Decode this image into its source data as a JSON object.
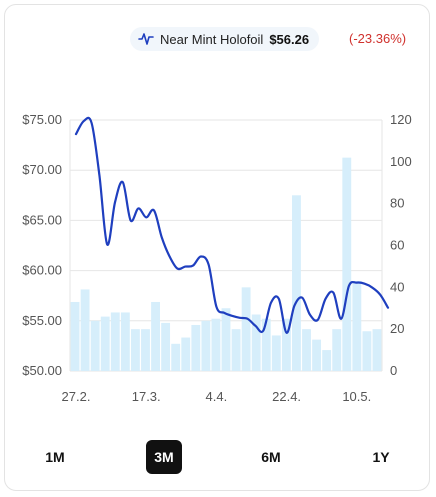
{
  "legend": {
    "series_name": "Near Mint Holofoil",
    "price": "$56.26",
    "change": "(-23.36%)",
    "icon": "line-chart-icon"
  },
  "colors": {
    "line": "#1f3fbf",
    "bars": "#d6eefb",
    "change": "#d0312d",
    "grid": "#e6e6e6"
  },
  "ranges": [
    {
      "label": "1M",
      "active": false
    },
    {
      "label": "3M",
      "active": true
    },
    {
      "label": "6M",
      "active": false
    },
    {
      "label": "1Y",
      "active": false
    }
  ],
  "chart_data": {
    "type": "line",
    "grid": true,
    "x_ticks": [
      "27.2.",
      "17.3.",
      "4.4.",
      "22.4.",
      "10.5."
    ],
    "x_tick_days": [
      0,
      18,
      36,
      54,
      72
    ],
    "y_left": {
      "ticks": [
        "$75.00",
        "$70.00",
        "$65.00",
        "$60.00",
        "$55.00",
        "$50.00"
      ],
      "tick_values": [
        75,
        70,
        65,
        60,
        55,
        50
      ],
      "range": [
        50,
        75
      ]
    },
    "y_right": {
      "ticks": [
        "120",
        "100",
        "80",
        "60",
        "40",
        "20",
        "0"
      ],
      "tick_values": [
        120,
        100,
        80,
        60,
        40,
        20,
        0
      ],
      "range": [
        0,
        120
      ]
    },
    "price_series": {
      "days": [
        0,
        2,
        4,
        6,
        8,
        10,
        12,
        14,
        16,
        18,
        20,
        22,
        24,
        26,
        28,
        30,
        32,
        34,
        36,
        38,
        40,
        42,
        44,
        46,
        48,
        50,
        52,
        54,
        56,
        58,
        60,
        62,
        64,
        66,
        68,
        70,
        72,
        74,
        76,
        78,
        80
      ],
      "values": [
        73.6,
        74.9,
        74.7,
        69.5,
        62.6,
        66.8,
        68.8,
        65.0,
        66.2,
        65.3,
        66.0,
        63.3,
        61.4,
        60.2,
        60.4,
        60.5,
        61.4,
        60.6,
        56.4,
        55.8,
        55.5,
        55.3,
        55.2,
        54.5,
        54.0,
        56.8,
        57.2,
        53.8,
        56.5,
        57.3,
        55.6,
        55.1,
        57.2,
        57.8,
        55.2,
        58.5,
        58.8,
        58.7,
        58.3,
        57.6,
        56.3
      ]
    },
    "volume_series": {
      "values": [
        33,
        39,
        24,
        26,
        28,
        28,
        20,
        20,
        33,
        23,
        13,
        16,
        22,
        24,
        25,
        30,
        20,
        40,
        27,
        25,
        17,
        25,
        84,
        20,
        15,
        10,
        20,
        102,
        43,
        19,
        20
      ]
    }
  }
}
